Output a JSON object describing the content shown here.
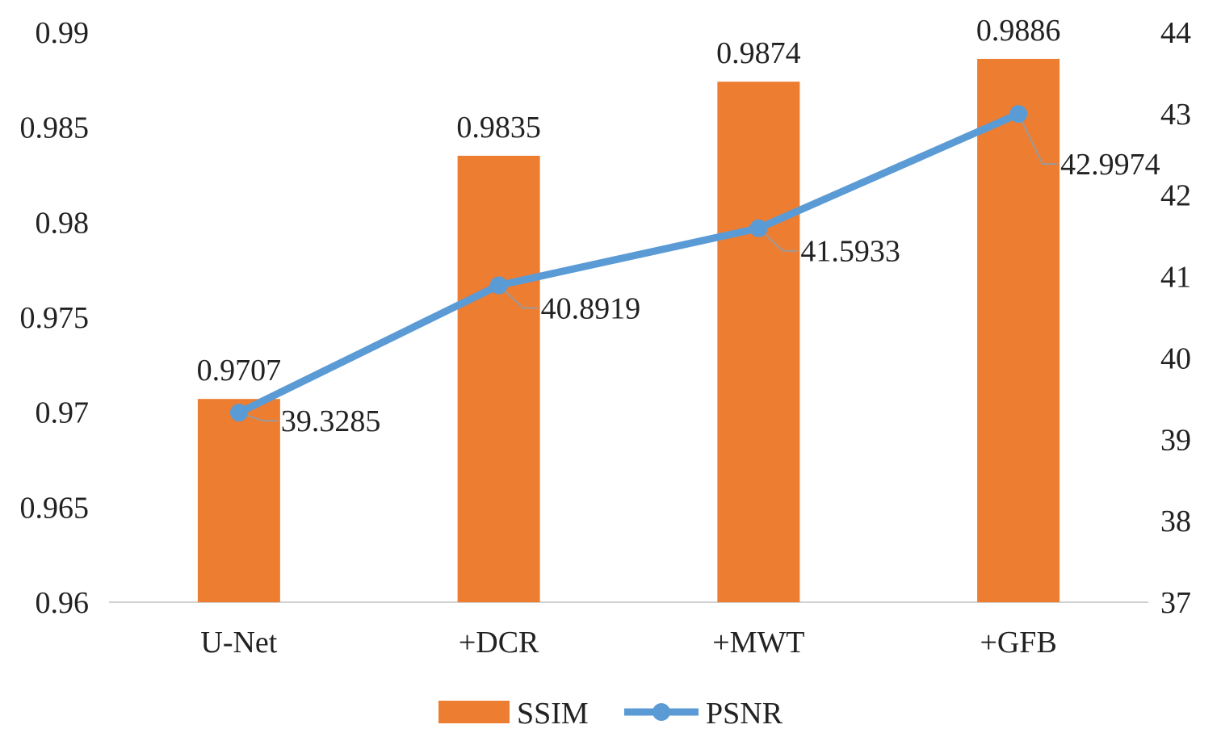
{
  "chart_data": {
    "type": "bar+line",
    "categories": [
      "U-Net",
      "+DCR",
      "+MWT",
      "+GFB"
    ],
    "series": [
      {
        "name": "SSIM",
        "kind": "bar",
        "axis": "left",
        "color": "#ED7D31",
        "values": [
          0.9707,
          0.9835,
          0.9874,
          0.9886
        ],
        "labels": [
          "0.9707",
          "0.9835",
          "0.9874",
          "0.9886"
        ]
      },
      {
        "name": "PSNR",
        "kind": "line",
        "axis": "right",
        "color": "#5B9BD5",
        "values": [
          39.3285,
          40.8919,
          41.5933,
          42.9974
        ],
        "labels": [
          "39.3285",
          "40.8919",
          "41.5933",
          "42.9974"
        ]
      }
    ],
    "left_axis": {
      "ylim": [
        0.96,
        0.99
      ],
      "ticks": [
        0.96,
        0.965,
        0.97,
        0.975,
        0.98,
        0.985,
        0.99
      ],
      "tick_labels": [
        "0.96",
        "0.965",
        "0.97",
        "0.975",
        "0.98",
        "0.985",
        "0.99"
      ]
    },
    "right_axis": {
      "ylim": [
        37,
        44
      ],
      "ticks": [
        37,
        38,
        39,
        40,
        41,
        42,
        43,
        44
      ],
      "tick_labels": [
        "37",
        "38",
        "39",
        "40",
        "41",
        "42",
        "43",
        "44"
      ]
    },
    "grid": false,
    "legend": {
      "position": "bottom",
      "entries": [
        "SSIM",
        "PSNR"
      ]
    }
  }
}
